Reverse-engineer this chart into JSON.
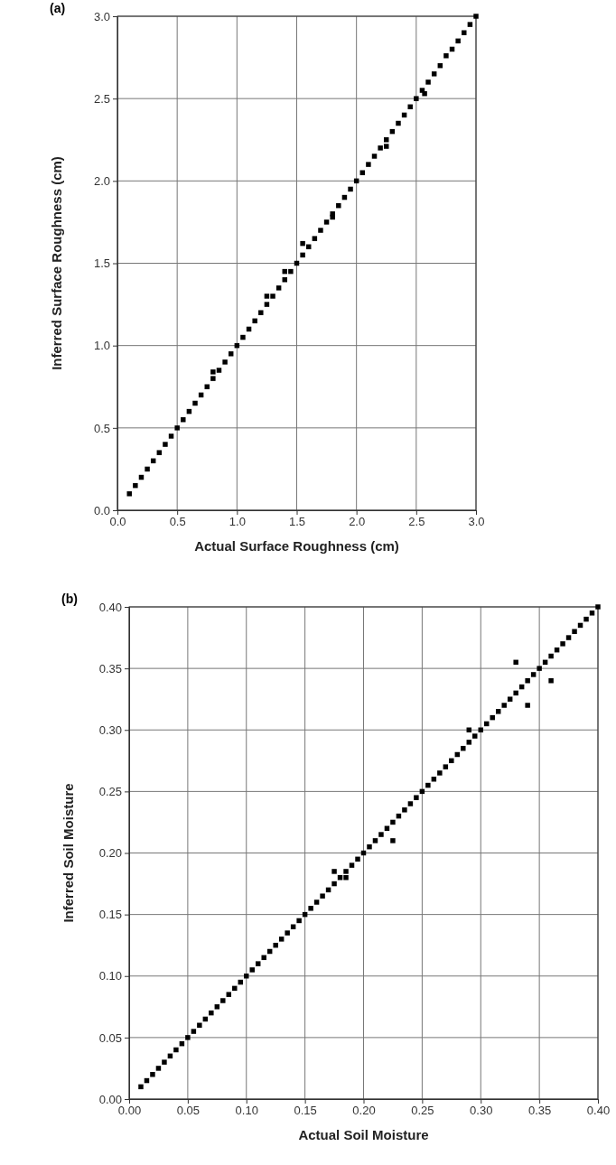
{
  "chart_data": [
    {
      "type": "scatter",
      "title": "(a)",
      "xlabel": "Actual Surface Roughness (cm)",
      "ylabel": "Inferred Surface Roughness (cm)",
      "xlim": [
        0,
        3
      ],
      "ylim": [
        0,
        3
      ],
      "xticks": [
        {
          "value": 0,
          "label": "0.0"
        },
        0.5,
        {
          "value": 1,
          "label": "1.0"
        },
        1.5,
        {
          "value": 2,
          "label": "2.0"
        },
        2.5,
        {
          "value": 3,
          "label": "3.0"
        }
      ],
      "yticks": [
        {
          "value": 0,
          "label": "0.0"
        },
        0.5,
        {
          "value": 1,
          "label": "1.0"
        },
        1.5,
        {
          "value": 2,
          "label": "2.0"
        },
        2.5,
        {
          "value": 3,
          "label": "3.0"
        }
      ],
      "grid": true,
      "marker": "square",
      "color": "#000000",
      "x": [
        0.1,
        0.15,
        0.2,
        0.25,
        0.3,
        0.35,
        0.4,
        0.45,
        0.5,
        0.55,
        0.6,
        0.65,
        0.7,
        0.75,
        0.8,
        0.8,
        0.85,
        0.9,
        0.95,
        1.0,
        1.05,
        1.1,
        1.15,
        1.2,
        1.25,
        1.25,
        1.3,
        1.35,
        1.4,
        1.4,
        1.45,
        1.5,
        1.55,
        1.55,
        1.6,
        1.65,
        1.7,
        1.75,
        1.8,
        1.8,
        1.85,
        1.9,
        1.95,
        2.0,
        2.05,
        2.1,
        2.15,
        2.2,
        2.25,
        2.25,
        2.3,
        2.35,
        2.4,
        2.45,
        2.5,
        2.55,
        2.57,
        2.6,
        2.65,
        2.7,
        2.75,
        2.8,
        2.85,
        2.9,
        2.95,
        3.0
      ],
      "values": [
        0.1,
        0.15,
        0.2,
        0.25,
        0.3,
        0.35,
        0.4,
        0.45,
        0.5,
        0.55,
        0.6,
        0.65,
        0.7,
        0.75,
        0.8,
        0.84,
        0.85,
        0.9,
        0.95,
        1.0,
        1.05,
        1.1,
        1.15,
        1.2,
        1.25,
        1.3,
        1.3,
        1.35,
        1.4,
        1.45,
        1.45,
        1.5,
        1.55,
        1.62,
        1.6,
        1.65,
        1.7,
        1.75,
        1.8,
        1.78,
        1.85,
        1.9,
        1.95,
        2.0,
        2.05,
        2.1,
        2.15,
        2.2,
        2.25,
        2.21,
        2.3,
        2.35,
        2.4,
        2.45,
        2.5,
        2.55,
        2.53,
        2.6,
        2.65,
        2.7,
        2.76,
        2.8,
        2.85,
        2.9,
        2.95,
        3.0
      ]
    },
    {
      "type": "scatter",
      "title": "(b)",
      "xlabel": "Actual Soil Moisture",
      "ylabel": "Inferred Soil Moisture",
      "xlim": [
        0,
        0.4
      ],
      "ylim": [
        0,
        0.4
      ],
      "xticks": [
        {
          "value": 0,
          "label": "0.00"
        },
        0.05,
        {
          "value": 0.1,
          "label": "0.10"
        },
        0.15,
        {
          "value": 0.2,
          "label": "0.20"
        },
        0.25,
        {
          "value": 0.3,
          "label": "0.30"
        },
        0.35,
        {
          "value": 0.4,
          "label": "0.40"
        }
      ],
      "yticks": [
        {
          "value": 0,
          "label": "0.00"
        },
        0.05,
        {
          "value": 0.1,
          "label": "0.10"
        },
        0.15,
        {
          "value": 0.2,
          "label": "0.20"
        },
        0.25,
        {
          "value": 0.3,
          "label": "0.30"
        },
        0.35,
        {
          "value": 0.4,
          "label": "0.40"
        }
      ],
      "grid": true,
      "marker": "square",
      "color": "#000000",
      "x": [
        0.01,
        0.015,
        0.02,
        0.025,
        0.03,
        0.035,
        0.04,
        0.045,
        0.05,
        0.055,
        0.06,
        0.065,
        0.07,
        0.075,
        0.08,
        0.085,
        0.09,
        0.095,
        0.1,
        0.105,
        0.11,
        0.115,
        0.12,
        0.125,
        0.13,
        0.135,
        0.14,
        0.145,
        0.15,
        0.155,
        0.16,
        0.165,
        0.17,
        0.175,
        0.175,
        0.18,
        0.185,
        0.185,
        0.19,
        0.195,
        0.2,
        0.205,
        0.21,
        0.215,
        0.22,
        0.225,
        0.225,
        0.23,
        0.235,
        0.24,
        0.245,
        0.25,
        0.255,
        0.26,
        0.265,
        0.27,
        0.275,
        0.28,
        0.285,
        0.29,
        0.29,
        0.295,
        0.3,
        0.305,
        0.31,
        0.315,
        0.32,
        0.325,
        0.33,
        0.33,
        0.335,
        0.34,
        0.34,
        0.345,
        0.35,
        0.355,
        0.36,
        0.36,
        0.365,
        0.37,
        0.375,
        0.38,
        0.385,
        0.39,
        0.395,
        0.4
      ],
      "values": [
        0.01,
        0.015,
        0.02,
        0.025,
        0.03,
        0.035,
        0.04,
        0.045,
        0.05,
        0.055,
        0.06,
        0.065,
        0.07,
        0.075,
        0.08,
        0.085,
        0.09,
        0.095,
        0.1,
        0.105,
        0.11,
        0.115,
        0.12,
        0.125,
        0.13,
        0.135,
        0.14,
        0.145,
        0.15,
        0.155,
        0.16,
        0.165,
        0.17,
        0.175,
        0.185,
        0.18,
        0.185,
        0.18,
        0.19,
        0.195,
        0.2,
        0.205,
        0.21,
        0.215,
        0.22,
        0.225,
        0.21,
        0.23,
        0.235,
        0.24,
        0.245,
        0.25,
        0.255,
        0.26,
        0.265,
        0.27,
        0.275,
        0.28,
        0.285,
        0.29,
        0.3,
        0.295,
        0.3,
        0.305,
        0.31,
        0.315,
        0.32,
        0.325,
        0.33,
        0.355,
        0.335,
        0.34,
        0.32,
        0.345,
        0.35,
        0.355,
        0.36,
        0.34,
        0.365,
        0.37,
        0.375,
        0.38,
        0.385,
        0.39,
        0.395,
        0.4
      ]
    }
  ]
}
